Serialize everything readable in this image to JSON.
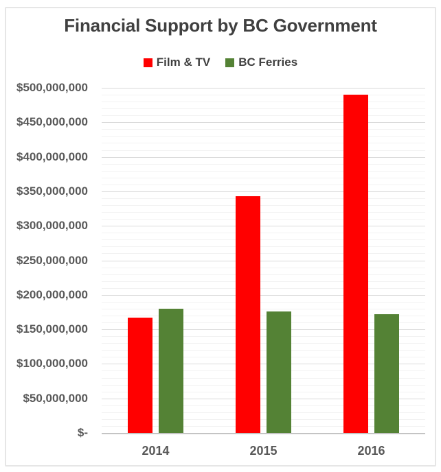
{
  "chart_data": {
    "type": "bar",
    "title": "Financial Support by BC Government",
    "categories": [
      "2014",
      "2015",
      "2016"
    ],
    "series": [
      {
        "name": "Film & TV",
        "color": "#FF0000",
        "values": [
          167000000,
          343000000,
          490000000
        ]
      },
      {
        "name": "BC Ferries",
        "color": "#548235",
        "values": [
          180000000,
          176000000,
          172000000
        ]
      }
    ],
    "ylim": [
      0,
      500000000
    ],
    "y_major_step": 50000000,
    "y_minor_step": 10000000,
    "y_tick_labels": [
      "$500,000,000",
      "$450,000,000",
      "$400,000,000",
      "$350,000,000",
      "$300,000,000",
      "$250,000,000",
      "$200,000,000",
      "$150,000,000",
      "$100,000,000",
      "$50,000,000",
      "$-"
    ],
    "legend_position": "top",
    "grid": "horizontal major + minor",
    "xlabel": "",
    "ylabel": ""
  },
  "colors": {
    "background": "#FFFFFF",
    "frame_border": "#E6E6E6",
    "title_text": "#404040",
    "axis_text": "#595959",
    "major_gridline": "#D9D9D9",
    "minor_gridline": "#F2F2F2",
    "axis_line": "#C4C4C4"
  }
}
